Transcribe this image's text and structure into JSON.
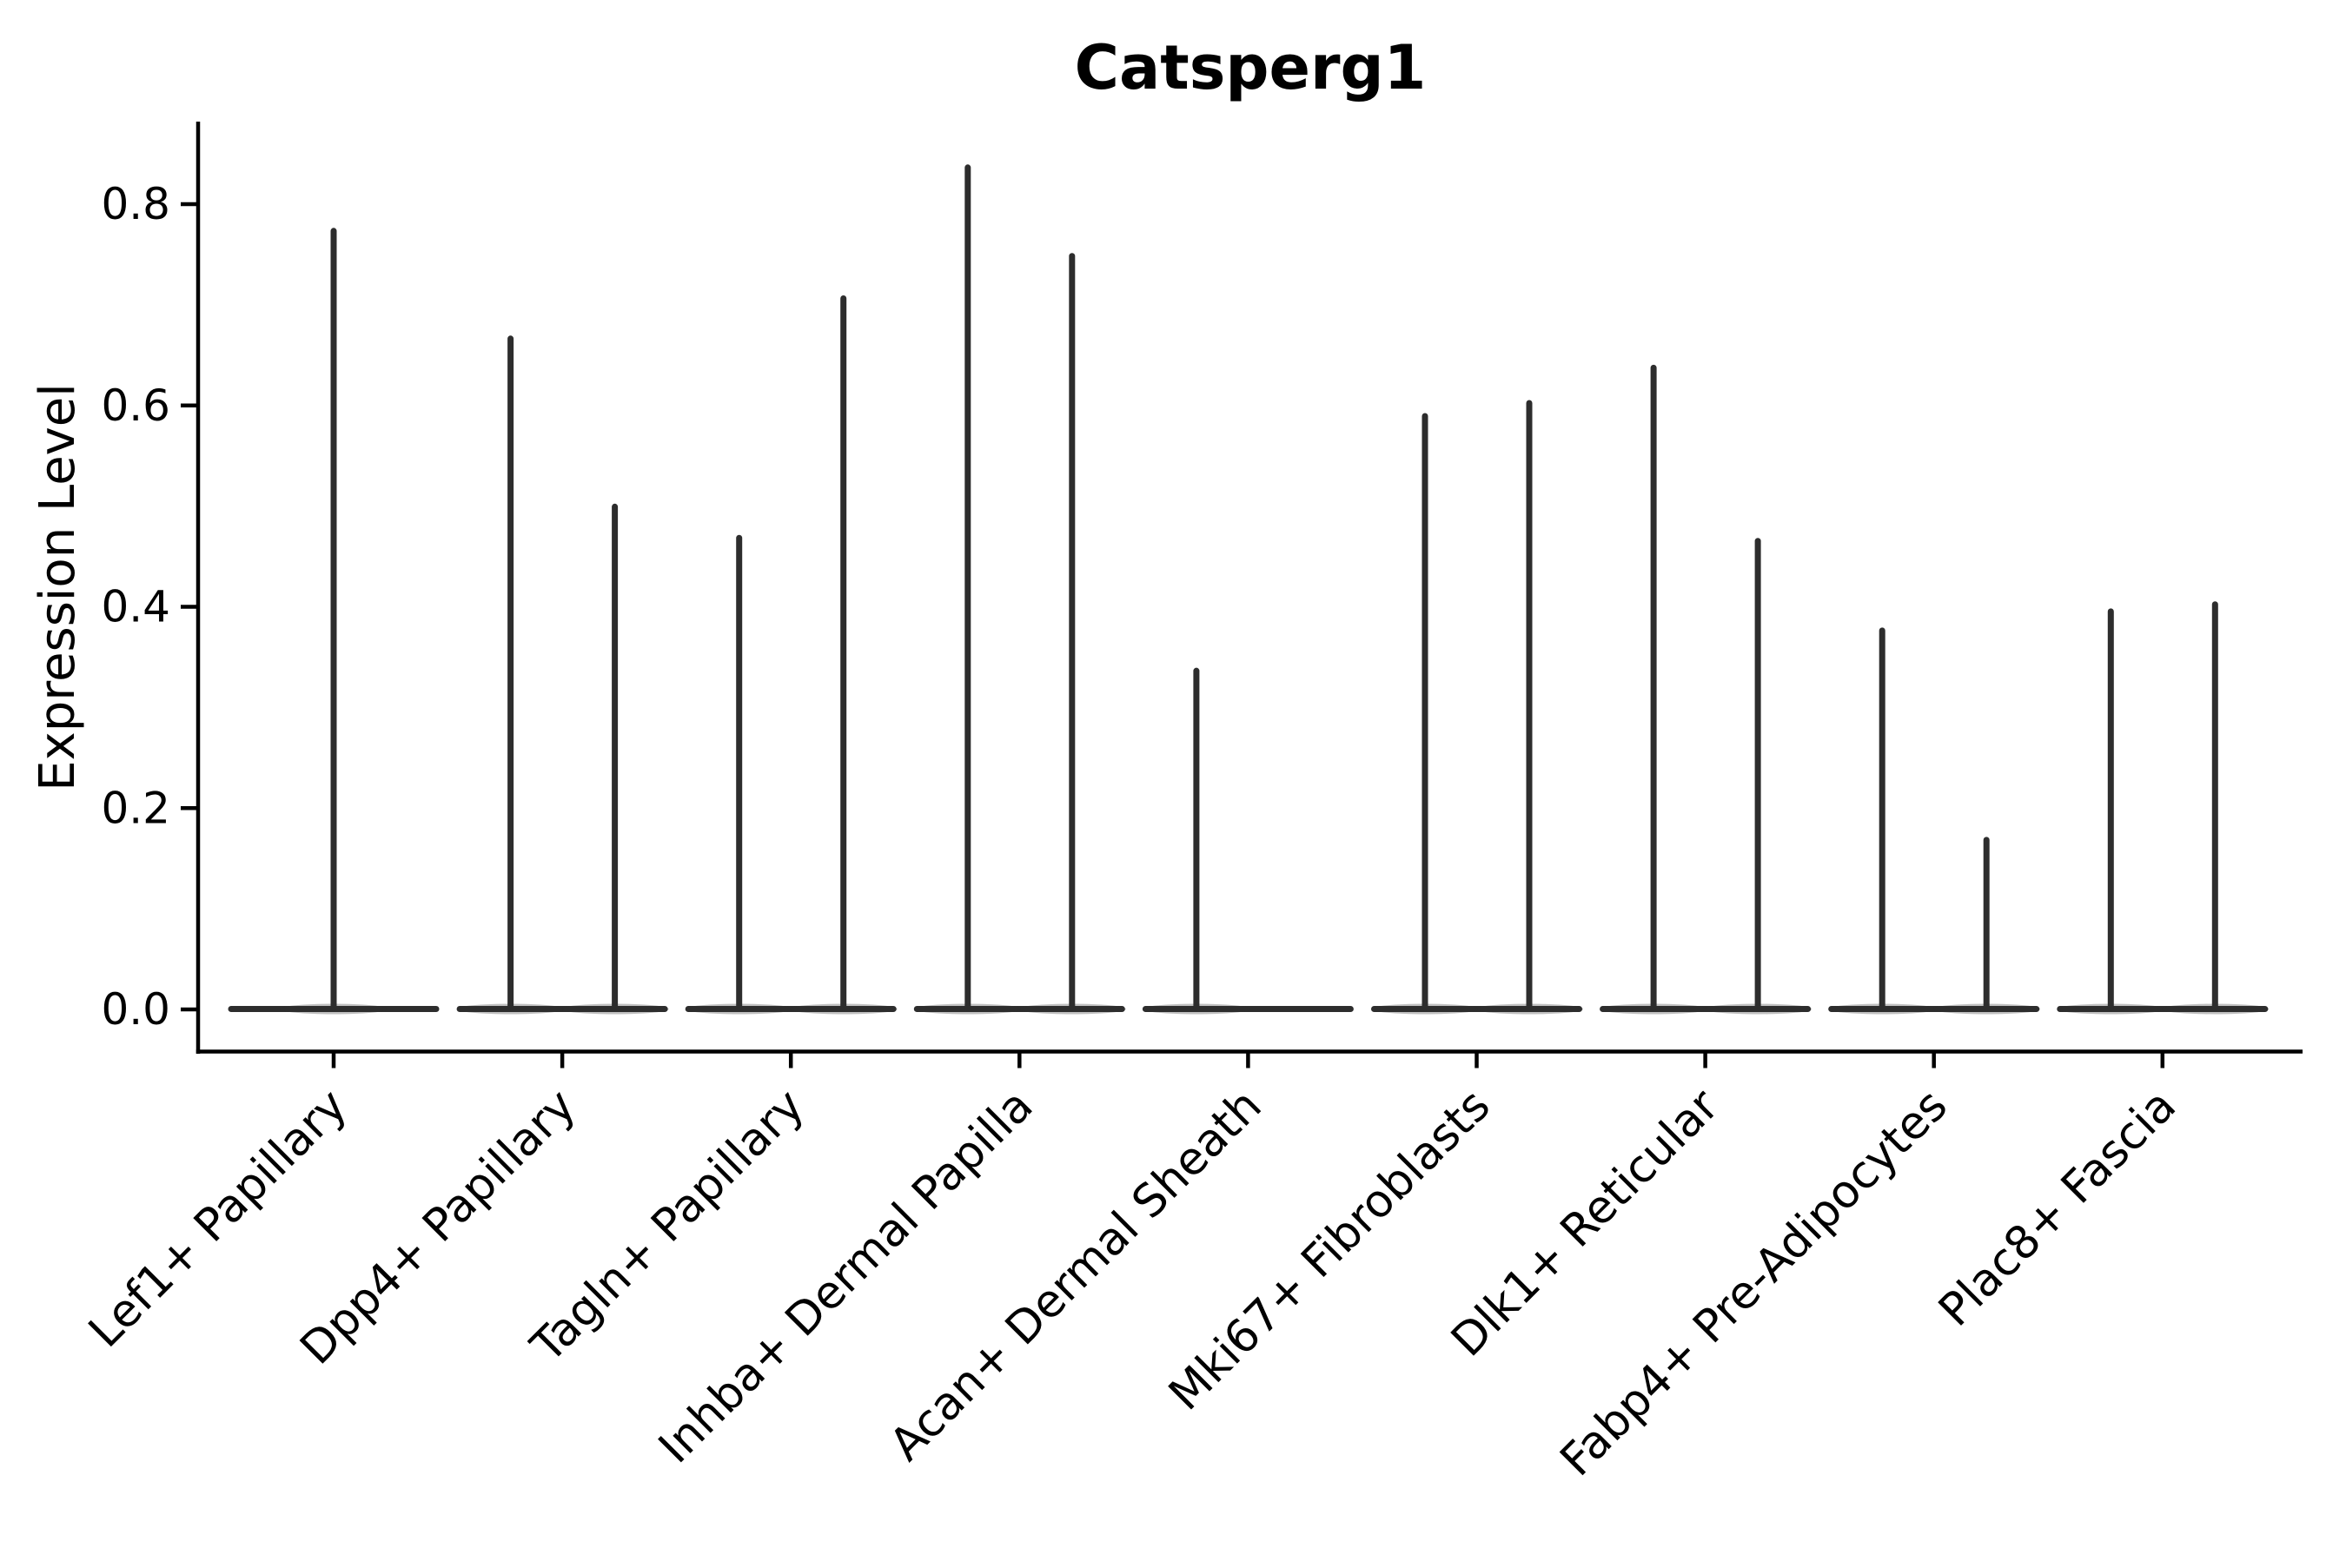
{
  "figure": {
    "background": "#ffffff"
  },
  "chart_data": {
    "type": "violin",
    "title": "Catsperg1",
    "ylabel": "Expression Level",
    "xlabel": "",
    "grid": false,
    "legend": null,
    "ylim": [
      -0.04,
      0.88
    ],
    "yticks": [
      0.0,
      0.2,
      0.4,
      0.6,
      0.8
    ],
    "ytick_labels": [
      "0.0",
      "0.2",
      "0.4",
      "0.6",
      "0.8"
    ],
    "categories": [
      "Lef1+ Papillary",
      "Dpp4+ Papillary",
      "Tagln+ Papillary",
      "Inhba+ Dermal Papilla",
      "Acan+ Dermal Sheath",
      "Mki67+ Fibroblasts",
      "Dlk1+ Reticular",
      "Fabp4+ Pre-Adipocytes",
      "Plac8+ Fascia"
    ],
    "violins": [
      {
        "category": "Lef1+ Papillary",
        "spikes": [
          {
            "slot": "center",
            "max": 0.776
          }
        ]
      },
      {
        "category": "Dpp4+ Papillary",
        "spikes": [
          {
            "slot": "left",
            "max": 0.669
          },
          {
            "slot": "right",
            "max": 0.502
          }
        ]
      },
      {
        "category": "Tagln+ Papillary",
        "spikes": [
          {
            "slot": "left",
            "max": 0.471
          },
          {
            "slot": "right",
            "max": 0.709
          }
        ]
      },
      {
        "category": "Inhba+ Dermal Papilla",
        "spikes": [
          {
            "slot": "left",
            "max": 0.839
          },
          {
            "slot": "right",
            "max": 0.751
          }
        ]
      },
      {
        "category": "Acan+ Dermal Sheath",
        "spikes": [
          {
            "slot": "left",
            "max": 0.339
          }
        ]
      },
      {
        "category": "Mki67+ Fibroblasts",
        "spikes": [
          {
            "slot": "left",
            "max": 0.592
          },
          {
            "slot": "right",
            "max": 0.605
          }
        ]
      },
      {
        "category": "Dlk1+ Reticular",
        "spikes": [
          {
            "slot": "left",
            "max": 0.64
          },
          {
            "slot": "right",
            "max": 0.468
          }
        ]
      },
      {
        "category": "Fabp4+ Pre-Adipocytes",
        "spikes": [
          {
            "slot": "left",
            "max": 0.379
          },
          {
            "slot": "right",
            "max": 0.171
          }
        ]
      },
      {
        "category": "Plac8+ Fascia",
        "spikes": [
          {
            "slot": "left",
            "max": 0.398
          },
          {
            "slot": "right",
            "max": 0.405
          }
        ]
      }
    ],
    "colors": {
      "violin": "#2d2d2d",
      "axis": "#000000",
      "text": "#000000"
    }
  }
}
